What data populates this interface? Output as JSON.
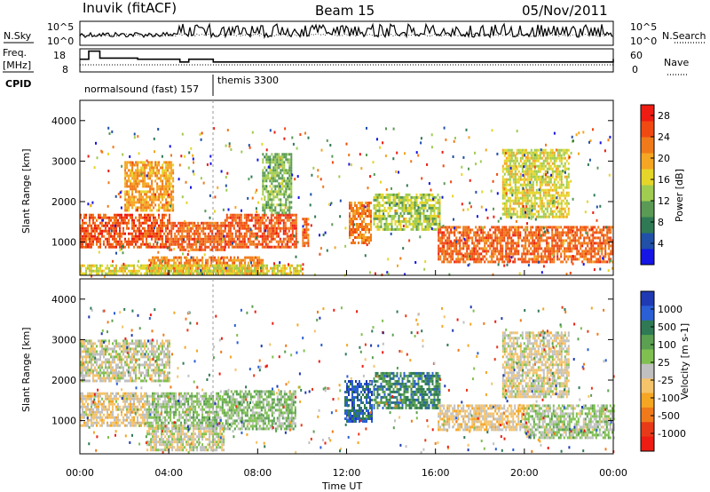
{
  "chart_data": [
    {
      "type": "line",
      "panel": "header",
      "title_left": "Inuvik (fitACF)",
      "title_center": "Beam 15",
      "title_right": "05/Nov/2011",
      "series": [
        {
          "name": "N.Sky",
          "yticks": [
            "10^5",
            "10^0"
          ]
        },
        {
          "name": "N.Search",
          "yticks": [
            "10^5",
            "10^0"
          ]
        }
      ],
      "legend": {
        "nsky": "N.Sky",
        "nsearch": "N.Search"
      }
    },
    {
      "type": "line",
      "panel": "frequency",
      "series": [
        {
          "name": "Freq.",
          "unit": "[MHz]",
          "yticks": [
            "18",
            "8"
          ],
          "ylim": [
            8,
            18
          ],
          "x": [
            0.0,
            0.4,
            0.9,
            2.6,
            4.5,
            4.9,
            6.0,
            24.0
          ],
          "y": [
            13.5,
            17.0,
            14.0,
            13.5,
            12.3,
            13.5,
            12.3,
            13.6
          ]
        },
        {
          "name": "Nave",
          "yticks": [
            "60",
            "0"
          ],
          "ylim": [
            0,
            60
          ]
        }
      ]
    },
    {
      "type": "table",
      "panel": "cpid",
      "label": "CPID",
      "entries": [
        {
          "text": "normalsound (fast) 157",
          "start_hour": 0.0
        },
        {
          "text": "themis 3300",
          "start_hour": 6.0
        }
      ]
    },
    {
      "type": "heatmap",
      "panel": "power",
      "ylabel": "Slant Range [km]",
      "yticks": [
        1000,
        2000,
        3000,
        4000
      ],
      "ylim": [
        180,
        4500
      ],
      "xlim": [
        0,
        24
      ],
      "colorbar": {
        "label": "Power [dB]",
        "ticks": [
          "4",
          "8",
          "12",
          "16",
          "20",
          "24",
          "28"
        ],
        "range": [
          0,
          30
        ]
      },
      "colors": [
        "#1515e6",
        "#2050a8",
        "#2f7a55",
        "#5a9a55",
        "#a0cc50",
        "#e6d62a",
        "#f5a623",
        "#f07a1a",
        "#f04a12",
        "#ee1c12"
      ],
      "regions": [
        {
          "x0": 0.0,
          "x1": 4.0,
          "r0": 900,
          "r1": 1700,
          "level": 25
        },
        {
          "x0": 4.0,
          "x1": 6.5,
          "r0": 800,
          "r1": 1500,
          "level": 24
        },
        {
          "x0": 6.5,
          "x1": 9.7,
          "r0": 900,
          "r1": 1700,
          "level": 25
        },
        {
          "x0": 10.0,
          "x1": 10.3,
          "r0": 900,
          "r1": 1600,
          "level": 24
        },
        {
          "x0": 3.0,
          "x1": 8.2,
          "r0": 200,
          "r1": 650,
          "level": 22
        },
        {
          "x0": 12.1,
          "x1": 13.1,
          "r0": 1000,
          "r1": 2000,
          "level": 22
        },
        {
          "x0": 16.1,
          "x1": 24.0,
          "r0": 500,
          "r1": 1400,
          "level": 24
        },
        {
          "x0": 2.0,
          "x1": 4.2,
          "r0": 1800,
          "r1": 3000,
          "level": 20
        },
        {
          "x0": 13.2,
          "x1": 16.2,
          "r0": 1300,
          "r1": 2200,
          "level": 14
        },
        {
          "x0": 8.2,
          "x1": 9.5,
          "r0": 1700,
          "r1": 3200,
          "level": 12
        },
        {
          "x0": 19.0,
          "x1": 22.0,
          "r0": 1600,
          "r1": 3300,
          "level": 16
        },
        {
          "x0": 0.0,
          "x1": 10.0,
          "r0": 200,
          "r1": 450,
          "level": 16
        }
      ]
    },
    {
      "type": "heatmap",
      "panel": "velocity",
      "ylabel": "Slant Range [km]",
      "yticks": [
        1000,
        2000,
        3000,
        4000
      ],
      "ylim": [
        180,
        4500
      ],
      "xlim": [
        0,
        24
      ],
      "xlabel": "Time UT",
      "xticks": [
        "00:00",
        "04:00",
        "08:00",
        "12:00",
        "16:00",
        "20:00",
        "00:00"
      ],
      "colorbar": {
        "label": "Velocity [m s-1]",
        "ticks": [
          "1000",
          "500",
          "100",
          "25",
          "-25",
          "-100",
          "-500",
          "-1000"
        ],
        "range": [
          -1000,
          1000
        ]
      },
      "colors": [
        "#1f3ab3",
        "#2a5fd6",
        "#2f7a55",
        "#5aa050",
        "#80c050",
        "#c0c0c0",
        "#f5c36a",
        "#f5a623",
        "#f07a1a",
        "#e83a18",
        "#ee1c12"
      ],
      "regions": [
        {
          "x0": 0.0,
          "x1": 3.0,
          "r0": 900,
          "r1": 1700,
          "level": -110
        },
        {
          "x0": 3.0,
          "x1": 6.3,
          "r0": 800,
          "r1": 1700,
          "level": 150
        },
        {
          "x0": 6.3,
          "x1": 9.7,
          "r0": 800,
          "r1": 1750,
          "level": 200
        },
        {
          "x0": 11.9,
          "x1": 13.1,
          "r0": 1000,
          "r1": 2000,
          "level": 700
        },
        {
          "x0": 13.2,
          "x1": 16.2,
          "r0": 1300,
          "r1": 2200,
          "level": 500
        },
        {
          "x0": 16.1,
          "x1": 20.0,
          "r0": 800,
          "r1": 1400,
          "level": -150
        },
        {
          "x0": 20.0,
          "x1": 24.0,
          "r0": 600,
          "r1": 1400,
          "level": 100
        },
        {
          "x0": 3.0,
          "x1": 6.5,
          "r0": 300,
          "r1": 900,
          "level": 0
        },
        {
          "x0": 0.0,
          "x1": 4.0,
          "r0": 2000,
          "r1": 3000,
          "level": 0
        },
        {
          "x0": 19.0,
          "x1": 22.0,
          "r0": 1600,
          "r1": 3200,
          "level": -60
        }
      ]
    }
  ]
}
